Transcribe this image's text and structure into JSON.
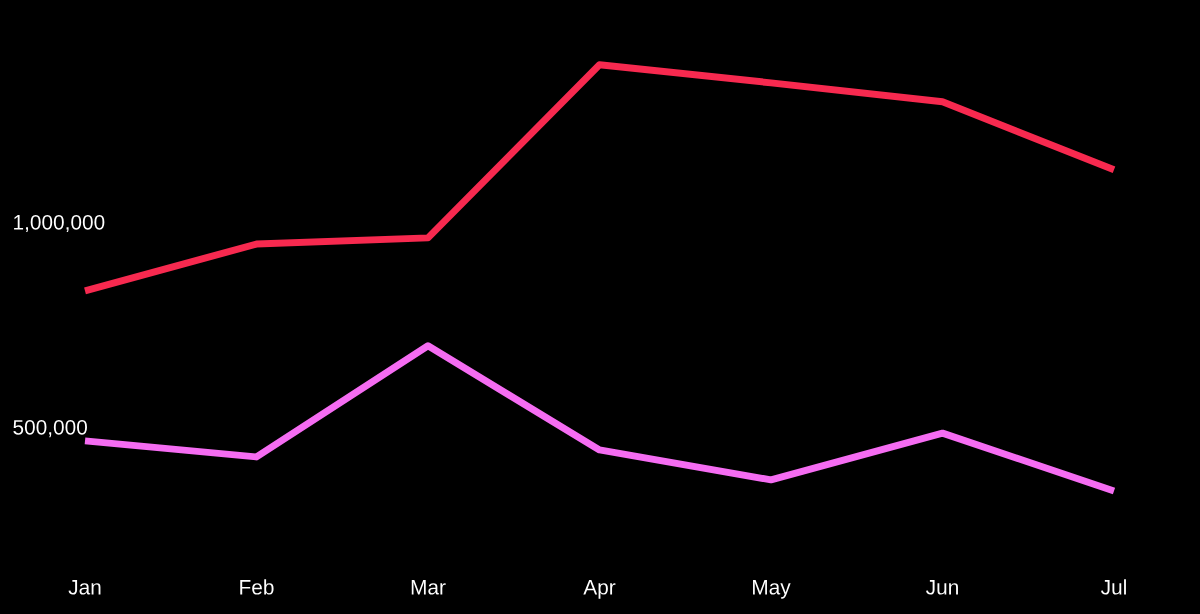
{
  "chart_data": {
    "type": "line",
    "categories": [
      "Jan",
      "Feb",
      "Mar",
      "Apr",
      "May",
      "Jun",
      "Jul"
    ],
    "series": [
      {
        "color": "#f56cf2",
        "values": [
          466000,
          427000,
          698000,
          444000,
          371000,
          485000,
          344000
        ]
      },
      {
        "color": "#f7294f",
        "values": [
          832000,
          946000,
          961000,
          1383000,
          1339000,
          1293000,
          1127000
        ]
      }
    ],
    "ylim": [
      44000,
      1541000
    ],
    "yticks": [
      {
        "value": 500000,
        "label": "500,000"
      },
      {
        "value": 1000000,
        "label": "1,000,000"
      }
    ],
    "grid": false,
    "marker": "none",
    "line_style": "solid"
  }
}
